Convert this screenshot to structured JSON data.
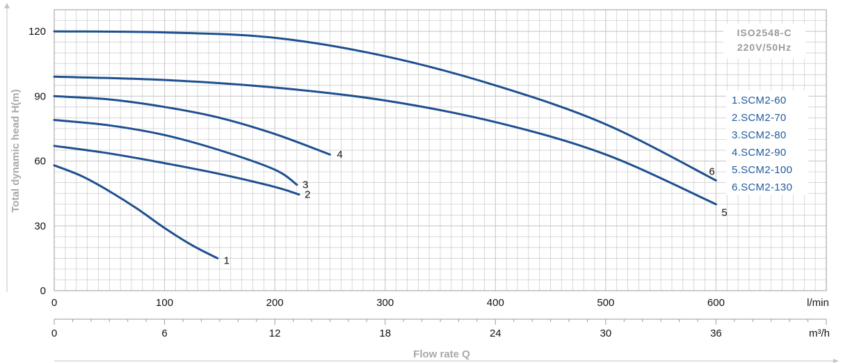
{
  "chart_data": {
    "type": "line",
    "title": "",
    "xlabel": "Flow rate Q",
    "ylabel": "Total dynamic head H(m)",
    "x_primary": {
      "unit": "l/min",
      "lim": [
        0,
        700
      ],
      "ticks": [
        0,
        100,
        200,
        300,
        400,
        500,
        600
      ]
    },
    "x_secondary": {
      "unit": "m³/h",
      "lim": [
        0,
        42
      ],
      "ticks": [
        0,
        6,
        12,
        18,
        24,
        30,
        36
      ]
    },
    "y": {
      "lim": [
        0,
        130
      ],
      "ticks": [
        0,
        30,
        60,
        90,
        120
      ]
    },
    "grid": true,
    "annotation": {
      "line1": "ISO2548-C",
      "line2": "220V/50Hz"
    },
    "legend_position": "right",
    "series": [
      {
        "name": "1.SCM2-60",
        "label": "1",
        "points": [
          [
            0,
            58
          ],
          [
            25,
            53
          ],
          [
            50,
            46
          ],
          [
            75,
            38
          ],
          [
            100,
            29
          ],
          [
            125,
            21
          ],
          [
            148,
            15
          ]
        ]
      },
      {
        "name": "2.SCM2-70",
        "label": "2",
        "points": [
          [
            0,
            67
          ],
          [
            50,
            63.5
          ],
          [
            100,
            59
          ],
          [
            150,
            54
          ],
          [
            200,
            48
          ],
          [
            222,
            44.5
          ]
        ]
      },
      {
        "name": "3.SCM2-80",
        "label": "3",
        "points": [
          [
            0,
            79
          ],
          [
            50,
            76.5
          ],
          [
            100,
            72
          ],
          [
            150,
            65
          ],
          [
            200,
            56
          ],
          [
            220,
            49
          ]
        ]
      },
      {
        "name": "4.SCM2-90",
        "label": "4",
        "points": [
          [
            0,
            90
          ],
          [
            50,
            88.5
          ],
          [
            100,
            85
          ],
          [
            150,
            80
          ],
          [
            200,
            72.5
          ],
          [
            250,
            63
          ]
        ]
      },
      {
        "name": "5.SCM2-100",
        "label": "5",
        "points": [
          [
            0,
            99
          ],
          [
            100,
            97.5
          ],
          [
            200,
            94
          ],
          [
            300,
            88
          ],
          [
            400,
            78
          ],
          [
            500,
            63
          ],
          [
            600,
            40
          ]
        ]
      },
      {
        "name": "6.SCM2-130",
        "label": "6",
        "points": [
          [
            0,
            120
          ],
          [
            100,
            119.5
          ],
          [
            200,
            117
          ],
          [
            300,
            108.5
          ],
          [
            400,
            95
          ],
          [
            500,
            77
          ],
          [
            600,
            51
          ]
        ]
      }
    ],
    "colors": {
      "curve": "#1d4f8f",
      "grid": "#c8c8c8",
      "legend_text": "#1f5aa0",
      "axis_title": "#a9a9a9"
    }
  }
}
